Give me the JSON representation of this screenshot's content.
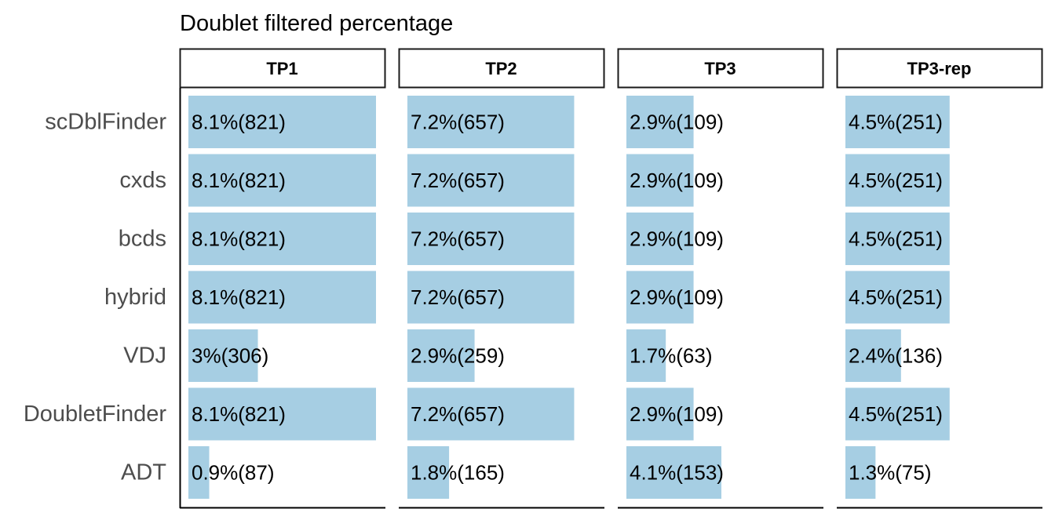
{
  "chart_data": {
    "type": "bar",
    "orientation": "horizontal",
    "title": "Doublet filtered percentage",
    "categories": [
      "scDblFinder",
      "cxds",
      "bcds",
      "hybrid",
      "VDJ",
      "DoubletFinder",
      "ADT"
    ],
    "bar_color": "#a6cee3",
    "panels": [
      {
        "name": "TP1",
        "values": [
          8.1,
          8.1,
          8.1,
          8.1,
          3,
          8.1,
          0.9
        ],
        "labels": [
          "8.1%(821)",
          "8.1%(821)",
          "8.1%(821)",
          "8.1%(821)",
          "3%(306)",
          "8.1%(821)",
          "0.9%(87)"
        ]
      },
      {
        "name": "TP2",
        "values": [
          7.2,
          7.2,
          7.2,
          7.2,
          2.9,
          7.2,
          1.8
        ],
        "labels": [
          "7.2%(657)",
          "7.2%(657)",
          "7.2%(657)",
          "7.2%(657)",
          "2.9%(259)",
          "7.2%(657)",
          "1.8%(165)"
        ]
      },
      {
        "name": "TP3",
        "values": [
          2.9,
          2.9,
          2.9,
          2.9,
          1.7,
          2.9,
          4.1
        ],
        "labels": [
          "2.9%(109)",
          "2.9%(109)",
          "2.9%(109)",
          "2.9%(109)",
          "1.7%(63)",
          "2.9%(109)",
          "4.1%(153)"
        ]
      },
      {
        "name": "TP3-rep",
        "values": [
          4.5,
          4.5,
          4.5,
          4.5,
          2.4,
          4.5,
          1.3
        ],
        "labels": [
          "4.5%(251)",
          "4.5%(251)",
          "4.5%(251)",
          "4.5%(251)",
          "2.4%(136)",
          "4.5%(251)",
          "1.3%(75)"
        ]
      }
    ],
    "grid": false,
    "legend": "none"
  }
}
